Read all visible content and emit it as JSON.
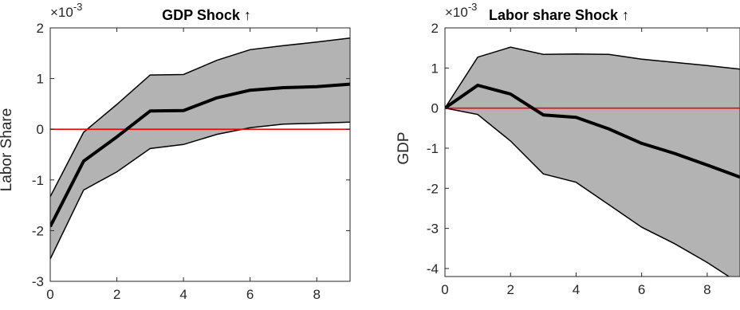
{
  "chart_data": [
    {
      "type": "line",
      "title": "GDP Shock ↑",
      "ylabel": "Labor Share",
      "xlabel": "",
      "exponent_label": "×10",
      "exponent": "-3",
      "xlim": [
        0,
        9
      ],
      "ylim": [
        -3,
        2
      ],
      "xticks": [
        0,
        2,
        4,
        6,
        8
      ],
      "yticks": [
        -3,
        -2,
        -1,
        0,
        1,
        2
      ],
      "x": [
        0,
        1,
        2,
        3,
        4,
        5,
        6,
        7,
        8,
        9
      ],
      "series": [
        {
          "role": "median",
          "values": [
            -1.92,
            -0.63,
            -0.15,
            0.36,
            0.37,
            0.62,
            0.77,
            0.82,
            0.84,
            0.89
          ]
        },
        {
          "role": "upper",
          "values": [
            -1.33,
            -0.06,
            0.49,
            1.07,
            1.08,
            1.36,
            1.57,
            1.65,
            1.72,
            1.8
          ]
        },
        {
          "role": "lower",
          "values": [
            -2.56,
            -1.2,
            -0.84,
            -0.38,
            -0.3,
            -0.1,
            0.03,
            0.1,
            0.12,
            0.14
          ]
        }
      ],
      "zero_line": 0,
      "colors": {
        "band": "#b3b3b3",
        "median": "#000000",
        "bounds": "#000000",
        "zero_line": "#ff0000"
      }
    },
    {
      "type": "line",
      "title": "Labor share Shock ↑",
      "ylabel": "GDP",
      "xlabel": "",
      "exponent_label": "×10",
      "exponent": "-3",
      "xlim": [
        0,
        9
      ],
      "ylim": [
        -4.2,
        2
      ],
      "xticks": [
        0,
        2,
        4,
        6,
        8
      ],
      "yticks": [
        -4,
        -3,
        -2,
        -1,
        0,
        1,
        2
      ],
      "x": [
        0,
        1,
        2,
        3,
        4,
        5,
        6,
        7,
        8,
        9
      ],
      "series": [
        {
          "role": "median",
          "values": [
            0,
            0.57,
            0.35,
            -0.17,
            -0.23,
            -0.52,
            -0.88,
            -1.13,
            -1.42,
            -1.72
          ]
        },
        {
          "role": "upper",
          "values": [
            0,
            1.27,
            1.52,
            1.34,
            1.35,
            1.34,
            1.22,
            1.14,
            1.06,
            0.97
          ]
        },
        {
          "role": "lower",
          "values": [
            0,
            -0.16,
            -0.82,
            -1.64,
            -1.85,
            -2.41,
            -2.97,
            -3.38,
            -3.85,
            -4.38
          ]
        }
      ],
      "zero_line": 0,
      "colors": {
        "band": "#b3b3b3",
        "median": "#000000",
        "bounds": "#000000",
        "zero_line": "#ff0000"
      }
    }
  ]
}
